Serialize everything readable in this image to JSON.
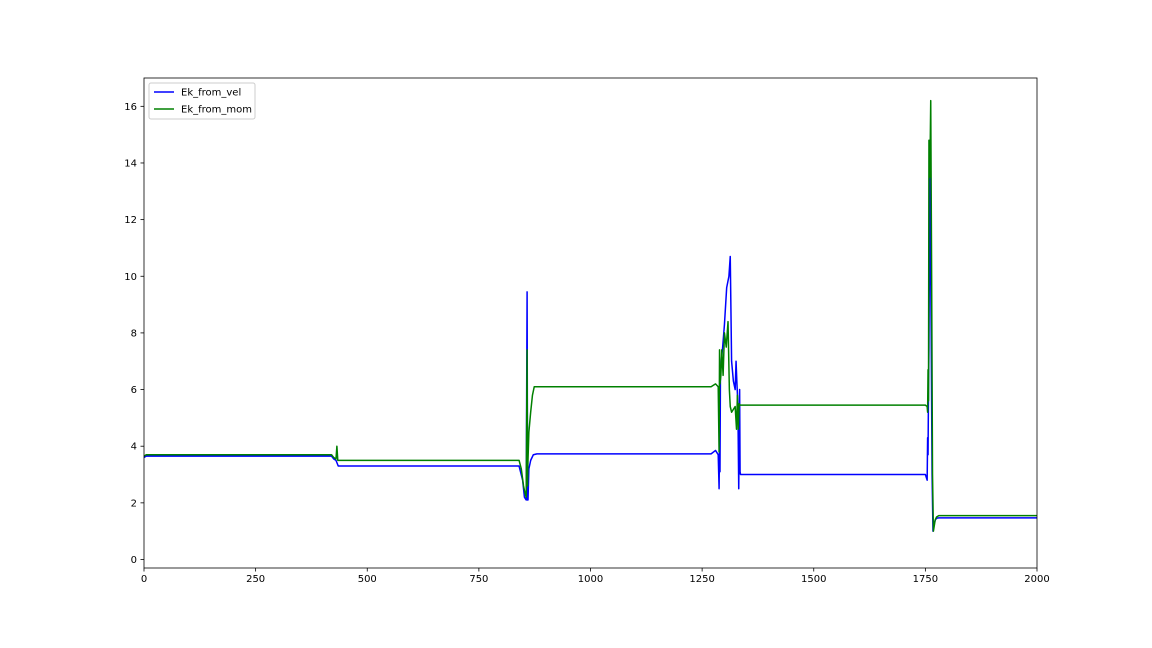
{
  "chart_data": {
    "type": "line",
    "title": "",
    "xlabel": "",
    "ylabel": "",
    "xlim": [
      0,
      2000
    ],
    "ylim": [
      -0.3,
      17.0
    ],
    "x_ticks": [
      0,
      250,
      500,
      750,
      1000,
      1250,
      1500,
      1750,
      2000
    ],
    "y_ticks": [
      0,
      2,
      4,
      6,
      8,
      10,
      12,
      14,
      16
    ],
    "grid": false,
    "legend_position": "upper-left",
    "series": [
      {
        "name": "Ek_from_vel",
        "color": "#0000ff",
        "x": [
          0,
          5,
          420,
          425,
          430,
          435,
          840,
          848,
          852,
          856,
          858,
          859,
          860,
          862,
          866,
          872,
          880,
          1270,
          1280,
          1286,
          1288,
          1289,
          1290,
          1291,
          1293,
          1296,
          1300,
          1305,
          1310,
          1313,
          1316,
          1320,
          1324,
          1326,
          1328,
          1330,
          1332,
          1334,
          1335,
          1336,
          1338,
          1340,
          1750,
          1754,
          1755,
          1756,
          1757,
          1758,
          1760,
          1763,
          1765,
          1767,
          1768,
          1770,
          1773,
          1776,
          1780,
          1790,
          2000
        ],
        "y": [
          3.6,
          3.65,
          3.65,
          3.55,
          3.5,
          3.3,
          3.3,
          2.8,
          2.2,
          2.1,
          9.45,
          2.1,
          2.1,
          3.2,
          3.5,
          3.7,
          3.73,
          3.73,
          3.85,
          3.7,
          2.5,
          4.1,
          3.1,
          6.5,
          7.0,
          7.5,
          8.3,
          9.6,
          10.0,
          10.7,
          7.0,
          6.3,
          6.0,
          7.0,
          6.2,
          5.5,
          2.5,
          6.0,
          3.1,
          3.0,
          3.0,
          3.0,
          3.0,
          2.8,
          4.3,
          3.7,
          6.0,
          7.5,
          13.7,
          8.0,
          3.0,
          1.0,
          1.1,
          1.3,
          1.42,
          1.46,
          1.47,
          1.47,
          1.47
        ]
      },
      {
        "name": "Ek_from_mom",
        "color": "#008000",
        "x": [
          0,
          5,
          420,
          425,
          430,
          432,
          434,
          436,
          840,
          845,
          850,
          854,
          856,
          858,
          859,
          860,
          862,
          866,
          870,
          874,
          878,
          1270,
          1280,
          1286,
          1288,
          1289,
          1290,
          1292,
          1294,
          1297,
          1300,
          1304,
          1308,
          1311,
          1313,
          1316,
          1320,
          1324,
          1327,
          1329,
          1331,
          1333,
          1335,
          1337,
          1340,
          1750,
          1754,
          1755,
          1756,
          1757,
          1758,
          1760,
          1762,
          1764,
          1766,
          1768,
          1770,
          1772,
          1775,
          1780,
          1790,
          2000
        ],
        "y": [
          3.65,
          3.7,
          3.7,
          3.6,
          3.55,
          4.0,
          3.5,
          3.5,
          3.5,
          3.2,
          2.6,
          2.3,
          2.2,
          7.4,
          2.6,
          3.5,
          4.5,
          5.2,
          5.8,
          6.1,
          6.1,
          6.1,
          6.2,
          6.1,
          3.8,
          7.4,
          6.2,
          6.5,
          7.4,
          6.5,
          8.0,
          7.5,
          8.4,
          6.0,
          5.4,
          5.2,
          5.3,
          5.4,
          4.6,
          5.8,
          4.6,
          5.5,
          5.45,
          5.45,
          5.45,
          5.45,
          5.4,
          5.2,
          6.7,
          5.6,
          14.8,
          13.5,
          16.2,
          10.0,
          3.0,
          1.0,
          1.2,
          1.4,
          1.5,
          1.55,
          1.55,
          1.55
        ]
      }
    ]
  }
}
